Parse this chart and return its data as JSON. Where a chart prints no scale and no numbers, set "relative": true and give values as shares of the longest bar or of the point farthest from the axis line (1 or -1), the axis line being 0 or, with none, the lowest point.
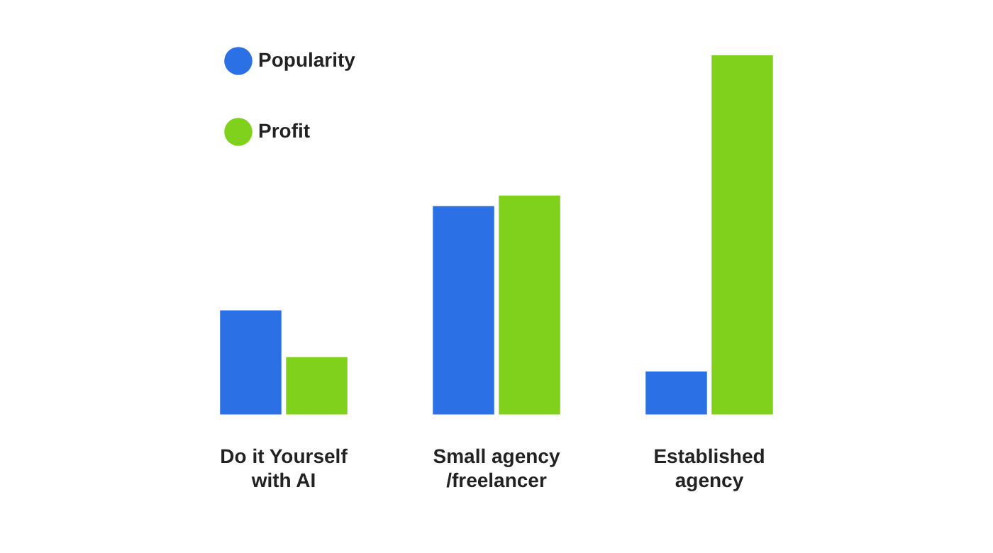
{
  "chart_data": {
    "type": "bar",
    "relative": true,
    "legend": "top left",
    "grid": false,
    "categories": [
      "Do it Yourself with AI",
      "Small agency /freelancer",
      "Established agency"
    ],
    "series": [
      {
        "name": "Popularity",
        "color": "#2b70e4",
        "values": [
          0.29,
          0.58,
          0.12
        ]
      },
      {
        "name": "Profit",
        "color": "#7fd11b",
        "values": [
          0.16,
          0.61,
          1
        ]
      }
    ]
  }
}
